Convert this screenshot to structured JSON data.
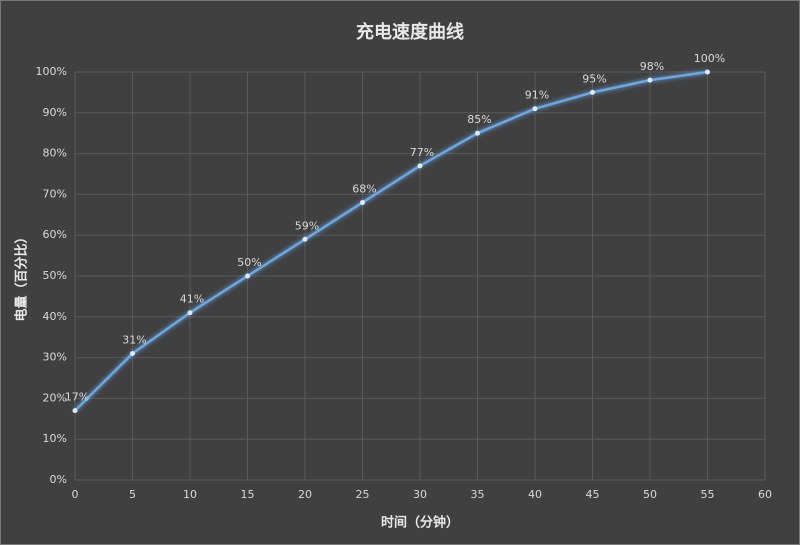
{
  "chart_data": {
    "type": "line",
    "title": "充电速度曲线",
    "x_label": "时间（分钟）",
    "y_label": "电量（百分比）",
    "x": [
      0,
      5,
      10,
      15,
      20,
      25,
      30,
      35,
      40,
      45,
      50,
      55
    ],
    "series": [
      {
        "color": "#6aa7e4",
        "values": [
          17,
          31,
          41,
          50,
          59,
          68,
          77,
          85,
          91,
          95,
          98,
          100
        ],
        "value_labels": [
          "17%",
          "31%",
          "41%",
          "50%",
          "59%",
          "68%",
          "77%",
          "85%",
          "91%",
          "95%",
          "98%",
          "100%"
        ]
      }
    ],
    "xlim": [
      0,
      60
    ],
    "xticks": [
      0,
      5,
      10,
      15,
      20,
      25,
      30,
      35,
      40,
      45,
      50,
      55,
      60
    ],
    "ylim": [
      0,
      100
    ],
    "yticks": [
      {
        "value": 0,
        "label": "0%"
      },
      {
        "value": 10,
        "label": "10%"
      },
      {
        "value": 20,
        "label": "20%"
      },
      {
        "value": 30,
        "label": "30%"
      },
      {
        "value": 40,
        "label": "40%"
      },
      {
        "value": 50,
        "label": "50%"
      },
      {
        "value": 60,
        "label": "60%"
      },
      {
        "value": 70,
        "label": "70%"
      },
      {
        "value": 80,
        "label": "80%"
      },
      {
        "value": 90,
        "label": "90%"
      },
      {
        "value": 100,
        "label": "100%"
      }
    ],
    "grid": true
  }
}
